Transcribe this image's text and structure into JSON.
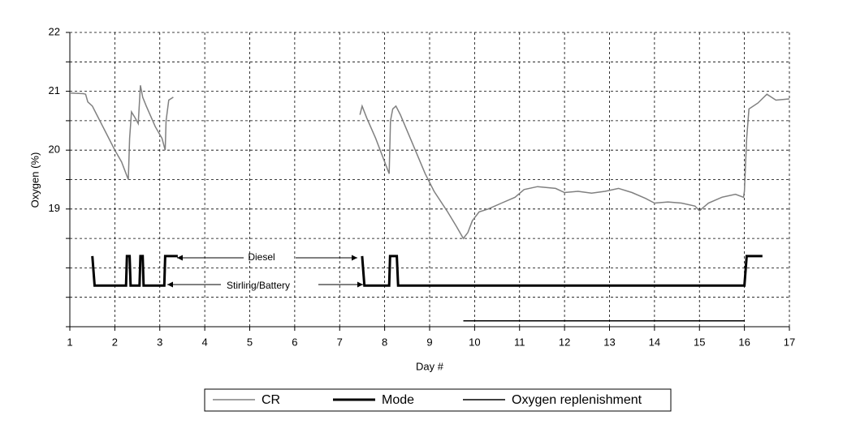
{
  "chart_data": {
    "type": "line",
    "x_label": "Day #",
    "y_label": "Oxygen (%)",
    "xlim": [
      1,
      17
    ],
    "xticks": [
      1,
      2,
      3,
      4,
      5,
      6,
      7,
      8,
      9,
      10,
      11,
      12,
      13,
      14,
      15,
      16,
      17
    ],
    "ylim": [
      17,
      22
    ],
    "yticks": [
      19,
      20,
      21,
      22
    ],
    "yminorticks": [
      17,
      17.5,
      18,
      18.5,
      19.5,
      20.5,
      21.5
    ],
    "grid": true,
    "legend": "bottom",
    "annotations": [
      "Diesel",
      "Stirling/Battery"
    ],
    "series": [
      {
        "name": "CR",
        "color": "#808080",
        "width": 1.5,
        "x": [
          1.0,
          1.3,
          1.35,
          1.4,
          1.5,
          1.6,
          1.8,
          2.0,
          2.15,
          2.25,
          2.3,
          2.33,
          2.37,
          2.45,
          2.52,
          2.57,
          2.62,
          2.7,
          2.9,
          3.05,
          3.12,
          3.14,
          3.2,
          3.3,
          5.0,
          7.45,
          7.5,
          7.6,
          7.8,
          7.95,
          8.05,
          8.1,
          8.13,
          8.18,
          8.25,
          8.35,
          8.6,
          8.9,
          9.1,
          9.4,
          9.6,
          9.75,
          9.85,
          9.95,
          10.1,
          10.3,
          10.6,
          10.9,
          11.1,
          11.4,
          11.8,
          12.0,
          12.3,
          12.6,
          12.9,
          13.2,
          13.5,
          13.8,
          14.0,
          14.3,
          14.6,
          14.9,
          15.0,
          15.2,
          15.5,
          15.8,
          15.98,
          16.0,
          16.05,
          16.1,
          16.3,
          16.5,
          16.7,
          17.0
        ],
        "values": [
          20.97,
          20.96,
          20.95,
          20.82,
          20.75,
          20.6,
          20.3,
          20.0,
          19.8,
          19.6,
          19.5,
          20.2,
          20.65,
          20.55,
          20.45,
          21.1,
          20.9,
          20.75,
          20.4,
          20.2,
          20.0,
          20.5,
          20.85,
          20.9,
          null,
          20.6,
          20.75,
          20.55,
          20.2,
          19.9,
          19.7,
          19.6,
          20.5,
          20.7,
          20.75,
          20.6,
          20.15,
          19.6,
          19.3,
          18.95,
          18.7,
          18.5,
          18.6,
          18.8,
          18.95,
          19.0,
          19.1,
          19.2,
          19.33,
          19.38,
          19.35,
          19.28,
          19.3,
          19.27,
          19.3,
          19.35,
          19.28,
          19.18,
          19.1,
          19.12,
          19.1,
          19.05,
          18.97,
          19.1,
          19.2,
          19.25,
          19.2,
          19.3,
          20.2,
          20.7,
          20.8,
          20.95,
          20.85,
          20.87
        ]
      },
      {
        "name": "Mode",
        "color": "#000000",
        "width": 3,
        "x": [
          1.5,
          1.55,
          2.25,
          2.27,
          2.33,
          2.35,
          2.55,
          2.57,
          2.62,
          2.64,
          3.1,
          3.12,
          3.4,
          5.0,
          7.5,
          7.55,
          8.1,
          8.12,
          8.27,
          8.3,
          16.0,
          16.05,
          16.4
        ],
        "values": [
          18.2,
          17.7,
          17.7,
          18.2,
          18.2,
          17.7,
          17.7,
          18.2,
          18.2,
          17.7,
          17.7,
          18.2,
          18.2,
          null,
          18.2,
          17.7,
          17.7,
          18.2,
          18.2,
          17.7,
          17.7,
          18.2,
          18.2
        ]
      },
      {
        "name": "Oxygen replenishment",
        "color": "#000000",
        "width": 1.5,
        "x": [
          9.75,
          16.0
        ],
        "values": [
          17.1,
          17.1
        ]
      }
    ]
  }
}
